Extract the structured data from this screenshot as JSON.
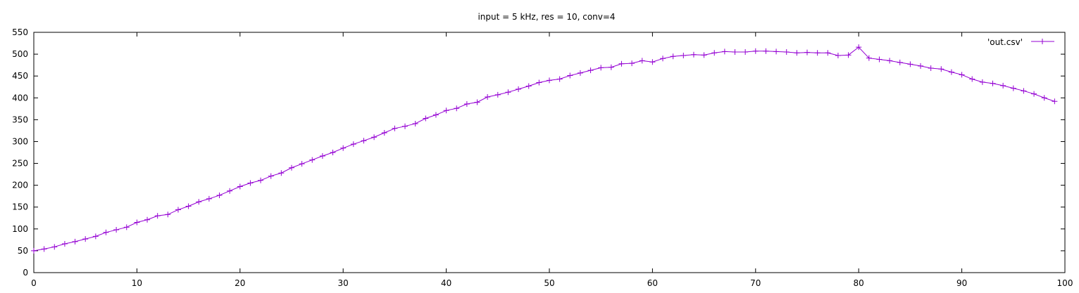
{
  "chart_data": {
    "type": "line",
    "title": "input = 5 kHz, res = 10, conv=4",
    "xlabel": "",
    "ylabel": "",
    "xlim": [
      0,
      100
    ],
    "ylim": [
      0,
      550
    ],
    "xticks": [
      0,
      10,
      20,
      30,
      40,
      50,
      60,
      70,
      80,
      90,
      100
    ],
    "yticks": [
      0,
      50,
      100,
      150,
      200,
      250,
      300,
      350,
      400,
      450,
      500,
      550
    ],
    "grid": false,
    "legend_position": "top-right",
    "marker": "plus",
    "series": [
      {
        "name": "'out.csv'",
        "color": "#9400D3",
        "x": [
          0,
          1,
          2,
          3,
          4,
          5,
          6,
          7,
          8,
          9,
          10,
          11,
          12,
          13,
          14,
          15,
          16,
          17,
          18,
          19,
          20,
          21,
          22,
          23,
          24,
          25,
          26,
          27,
          28,
          29,
          30,
          31,
          32,
          33,
          34,
          35,
          36,
          37,
          38,
          39,
          40,
          41,
          42,
          43,
          44,
          45,
          46,
          47,
          48,
          49,
          50,
          51,
          52,
          53,
          54,
          55,
          56,
          57,
          58,
          59,
          60,
          61,
          62,
          63,
          64,
          65,
          66,
          67,
          68,
          69,
          70,
          71,
          72,
          73,
          74,
          75,
          76,
          77,
          78,
          79,
          80,
          81,
          82,
          83,
          84,
          85,
          86,
          87,
          88,
          89,
          90,
          91,
          92,
          93,
          94,
          95,
          96,
          97,
          98,
          99
        ],
        "y": [
          50,
          54,
          59,
          66,
          71,
          77,
          83,
          92,
          98,
          104,
          115,
          121,
          130,
          133,
          144,
          152,
          162,
          169,
          177,
          187,
          197,
          205,
          211,
          221,
          228,
          240,
          249,
          258,
          267,
          275,
          285,
          294,
          302,
          310,
          320,
          330,
          335,
          341,
          353,
          361,
          371,
          376,
          386,
          390,
          402,
          407,
          413,
          420,
          427,
          435,
          440,
          443,
          451,
          457,
          463,
          469,
          470,
          478,
          479,
          485,
          482,
          490,
          495,
          497,
          499,
          498,
          503,
          506,
          505,
          505,
          507,
          507,
          506,
          505,
          503,
          504,
          503,
          503,
          497,
          498,
          516,
          491,
          488,
          485,
          481,
          477,
          473,
          468,
          466,
          459,
          453,
          443,
          436,
          433,
          428,
          422,
          416,
          409,
          400,
          392
        ]
      }
    ]
  }
}
